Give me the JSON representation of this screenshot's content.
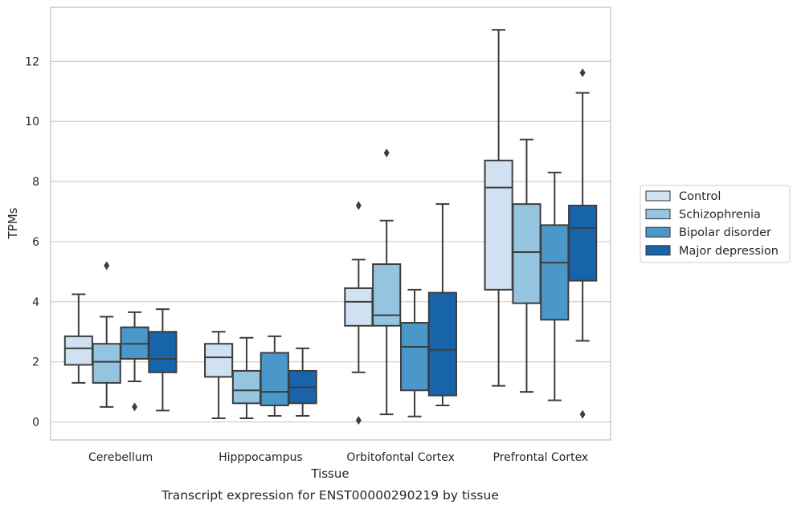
{
  "caption": "Transcript expression for ENST00000290219 by tissue",
  "chart_data": {
    "type": "box",
    "title": "",
    "xlabel": "Tissue",
    "ylabel": "TPMs",
    "ylim": [
      -0.6,
      13.8
    ],
    "yticks": [
      0,
      2,
      4,
      6,
      8,
      10,
      12
    ],
    "grid": "horizontal",
    "legend_position": "right",
    "categories": [
      "Cerebellum",
      "Hipppocampus",
      "Orbitofontal Cortex",
      "Prefrontal Cortex"
    ],
    "series": [
      {
        "name": "Control",
        "color": "#d0e1f2",
        "boxes": [
          {
            "whisker_low": 1.3,
            "q1": 1.9,
            "median": 2.45,
            "q3": 2.85,
            "whisker_high": 4.25,
            "outliers": []
          },
          {
            "whisker_low": 0.12,
            "q1": 1.5,
            "median": 2.15,
            "q3": 2.6,
            "whisker_high": 3.0,
            "outliers": []
          },
          {
            "whisker_low": 1.65,
            "q1": 3.2,
            "median": 4.0,
            "q3": 4.45,
            "whisker_high": 5.4,
            "outliers": [
              7.2,
              0.05
            ]
          },
          {
            "whisker_low": 1.2,
            "q1": 4.4,
            "median": 7.8,
            "q3": 8.7,
            "whisker_high": 13.05,
            "outliers": []
          }
        ]
      },
      {
        "name": "Schizophrenia",
        "color": "#94c4df",
        "boxes": [
          {
            "whisker_low": 0.5,
            "q1": 1.3,
            "median": 2.0,
            "q3": 2.6,
            "whisker_high": 3.5,
            "outliers": [
              5.2
            ]
          },
          {
            "whisker_low": 0.12,
            "q1": 0.62,
            "median": 1.05,
            "q3": 1.7,
            "whisker_high": 2.8,
            "outliers": []
          },
          {
            "whisker_low": 0.25,
            "q1": 3.2,
            "median": 3.55,
            "q3": 5.25,
            "whisker_high": 6.7,
            "outliers": [
              8.95
            ]
          },
          {
            "whisker_low": 1.0,
            "q1": 3.95,
            "median": 5.65,
            "q3": 7.25,
            "whisker_high": 9.4,
            "outliers": []
          }
        ]
      },
      {
        "name": "Bipolar disorder",
        "color": "#4a98c9",
        "boxes": [
          {
            "whisker_low": 1.35,
            "q1": 2.1,
            "median": 2.6,
            "q3": 3.15,
            "whisker_high": 3.65,
            "outliers": [
              0.5
            ]
          },
          {
            "whisker_low": 0.2,
            "q1": 0.55,
            "median": 1.0,
            "q3": 2.3,
            "whisker_high": 2.85,
            "outliers": []
          },
          {
            "whisker_low": 0.18,
            "q1": 1.05,
            "median": 2.5,
            "q3": 3.3,
            "whisker_high": 4.4,
            "outliers": []
          },
          {
            "whisker_low": 0.72,
            "q1": 3.4,
            "median": 5.3,
            "q3": 6.55,
            "whisker_high": 8.3,
            "outliers": []
          }
        ]
      },
      {
        "name": "Major depression",
        "color": "#1764ab",
        "boxes": [
          {
            "whisker_low": 0.38,
            "q1": 1.65,
            "median": 2.1,
            "q3": 3.0,
            "whisker_high": 3.75,
            "outliers": []
          },
          {
            "whisker_low": 0.2,
            "q1": 0.62,
            "median": 1.15,
            "q3": 1.7,
            "whisker_high": 2.45,
            "outliers": []
          },
          {
            "whisker_low": 0.55,
            "q1": 0.88,
            "median": 2.4,
            "q3": 4.3,
            "whisker_high": 7.25,
            "outliers": []
          },
          {
            "whisker_low": 2.7,
            "q1": 4.7,
            "median": 6.45,
            "q3": 7.2,
            "whisker_high": 10.95,
            "outliers": [
              11.62,
              0.25
            ]
          }
        ]
      }
    ]
  }
}
